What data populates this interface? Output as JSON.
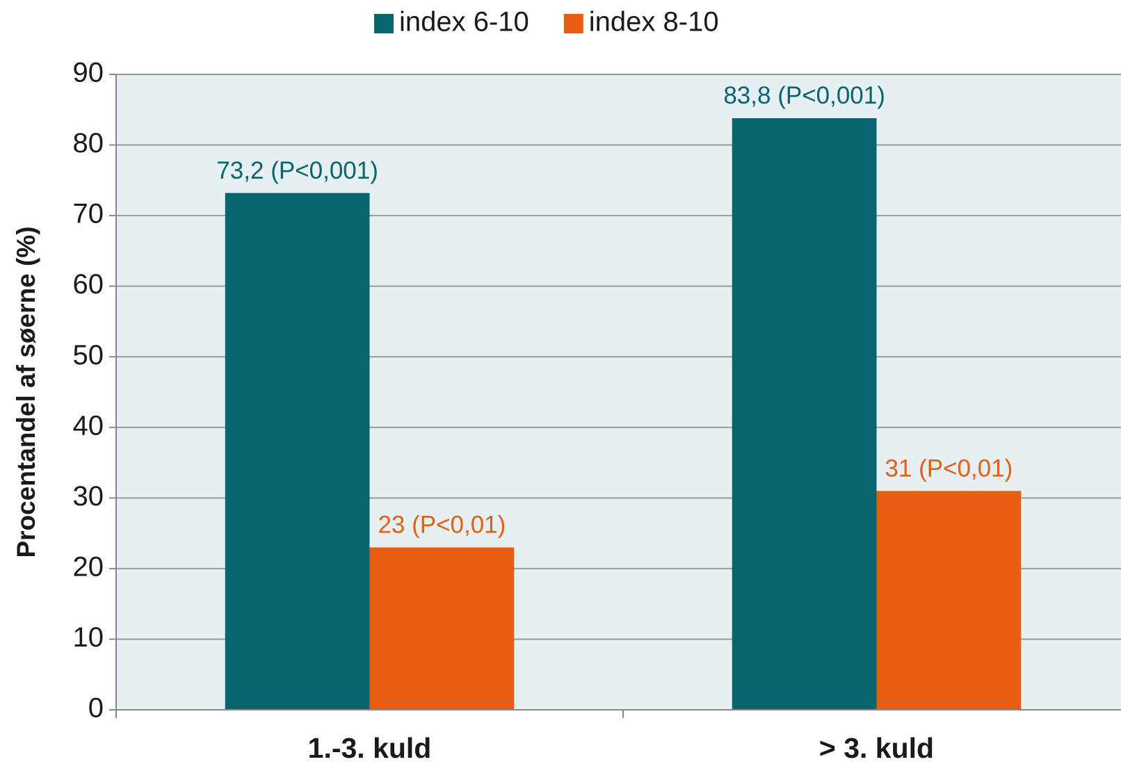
{
  "chart_data": {
    "type": "bar",
    "y_label": "Procentandel af søerne (%)",
    "categories": [
      "1.-3. kuld",
      "> 3. kuld"
    ],
    "series": [
      {
        "name": "index 6-10",
        "color": "#08646f",
        "values": [
          73.2,
          83.8
        ],
        "value_labels": [
          "73,2 (P<0,001)",
          "83,8 (P<0,001)"
        ]
      },
      {
        "name": "index 8-10",
        "color": "#e85d12",
        "values": [
          23,
          31
        ],
        "value_labels": [
          "23 (P<0,01)",
          "31 (P<0,01)"
        ]
      }
    ],
    "ylim": [
      0,
      90
    ],
    "yticks": [
      0,
      10,
      20,
      30,
      40,
      50,
      60,
      70,
      80,
      90
    ],
    "grid": true,
    "plot_background": "#e6eff1",
    "legend": "top"
  }
}
